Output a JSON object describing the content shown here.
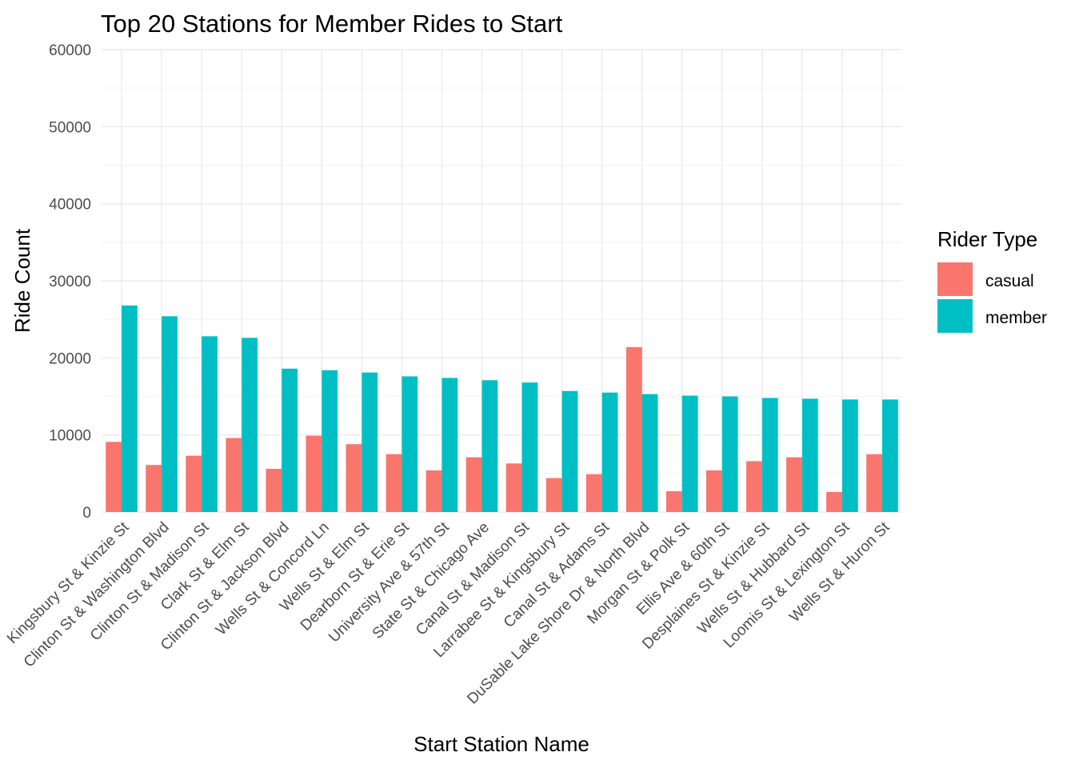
{
  "chart_data": {
    "type": "bar",
    "title": "Top 20 Stations for Member Rides to Start",
    "xlabel": "Start Station Name",
    "ylabel": "Ride Count",
    "ylim": [
      0,
      60000
    ],
    "yticks": [
      0,
      10000,
      20000,
      30000,
      40000,
      50000,
      60000
    ],
    "grid": true,
    "legend": {
      "title": "Rider Type",
      "placement": "right"
    },
    "categories": [
      "Kingsbury St & Kinzie St",
      "Clinton St & Washington Blvd",
      "Clinton St & Madison St",
      "Clark St & Elm St",
      "Clinton St & Jackson Blvd",
      "Wells St & Concord Ln",
      "Wells St & Elm St",
      "Dearborn St & Erie St",
      "University Ave & 57th St",
      "State St & Chicago Ave",
      "Canal St & Madison St",
      "Larrabee St & Kingsbury St",
      "Canal St & Adams St",
      "DuSable Lake Shore Dr & North Blvd",
      "Morgan St & Polk St",
      "Ellis Ave & 60th St",
      "Desplaines St & Kinzie St",
      "Wells St & Hubbard St",
      "Loomis St & Lexington St",
      "Wells St & Huron St"
    ],
    "series": [
      {
        "name": "casual",
        "color": "#F8766D",
        "values": [
          9100,
          6100,
          7300,
          9600,
          5600,
          9900,
          8800,
          7500,
          5400,
          7100,
          6300,
          4400,
          4900,
          21400,
          2700,
          5400,
          6600,
          7100,
          2600,
          7500
        ]
      },
      {
        "name": "member",
        "color": "#00BFC4",
        "values": [
          26800,
          25400,
          22800,
          22600,
          18600,
          18400,
          18100,
          17600,
          17400,
          17100,
          16800,
          15700,
          15500,
          15300,
          15100,
          15000,
          14800,
          14700,
          14600,
          14600
        ]
      }
    ]
  }
}
